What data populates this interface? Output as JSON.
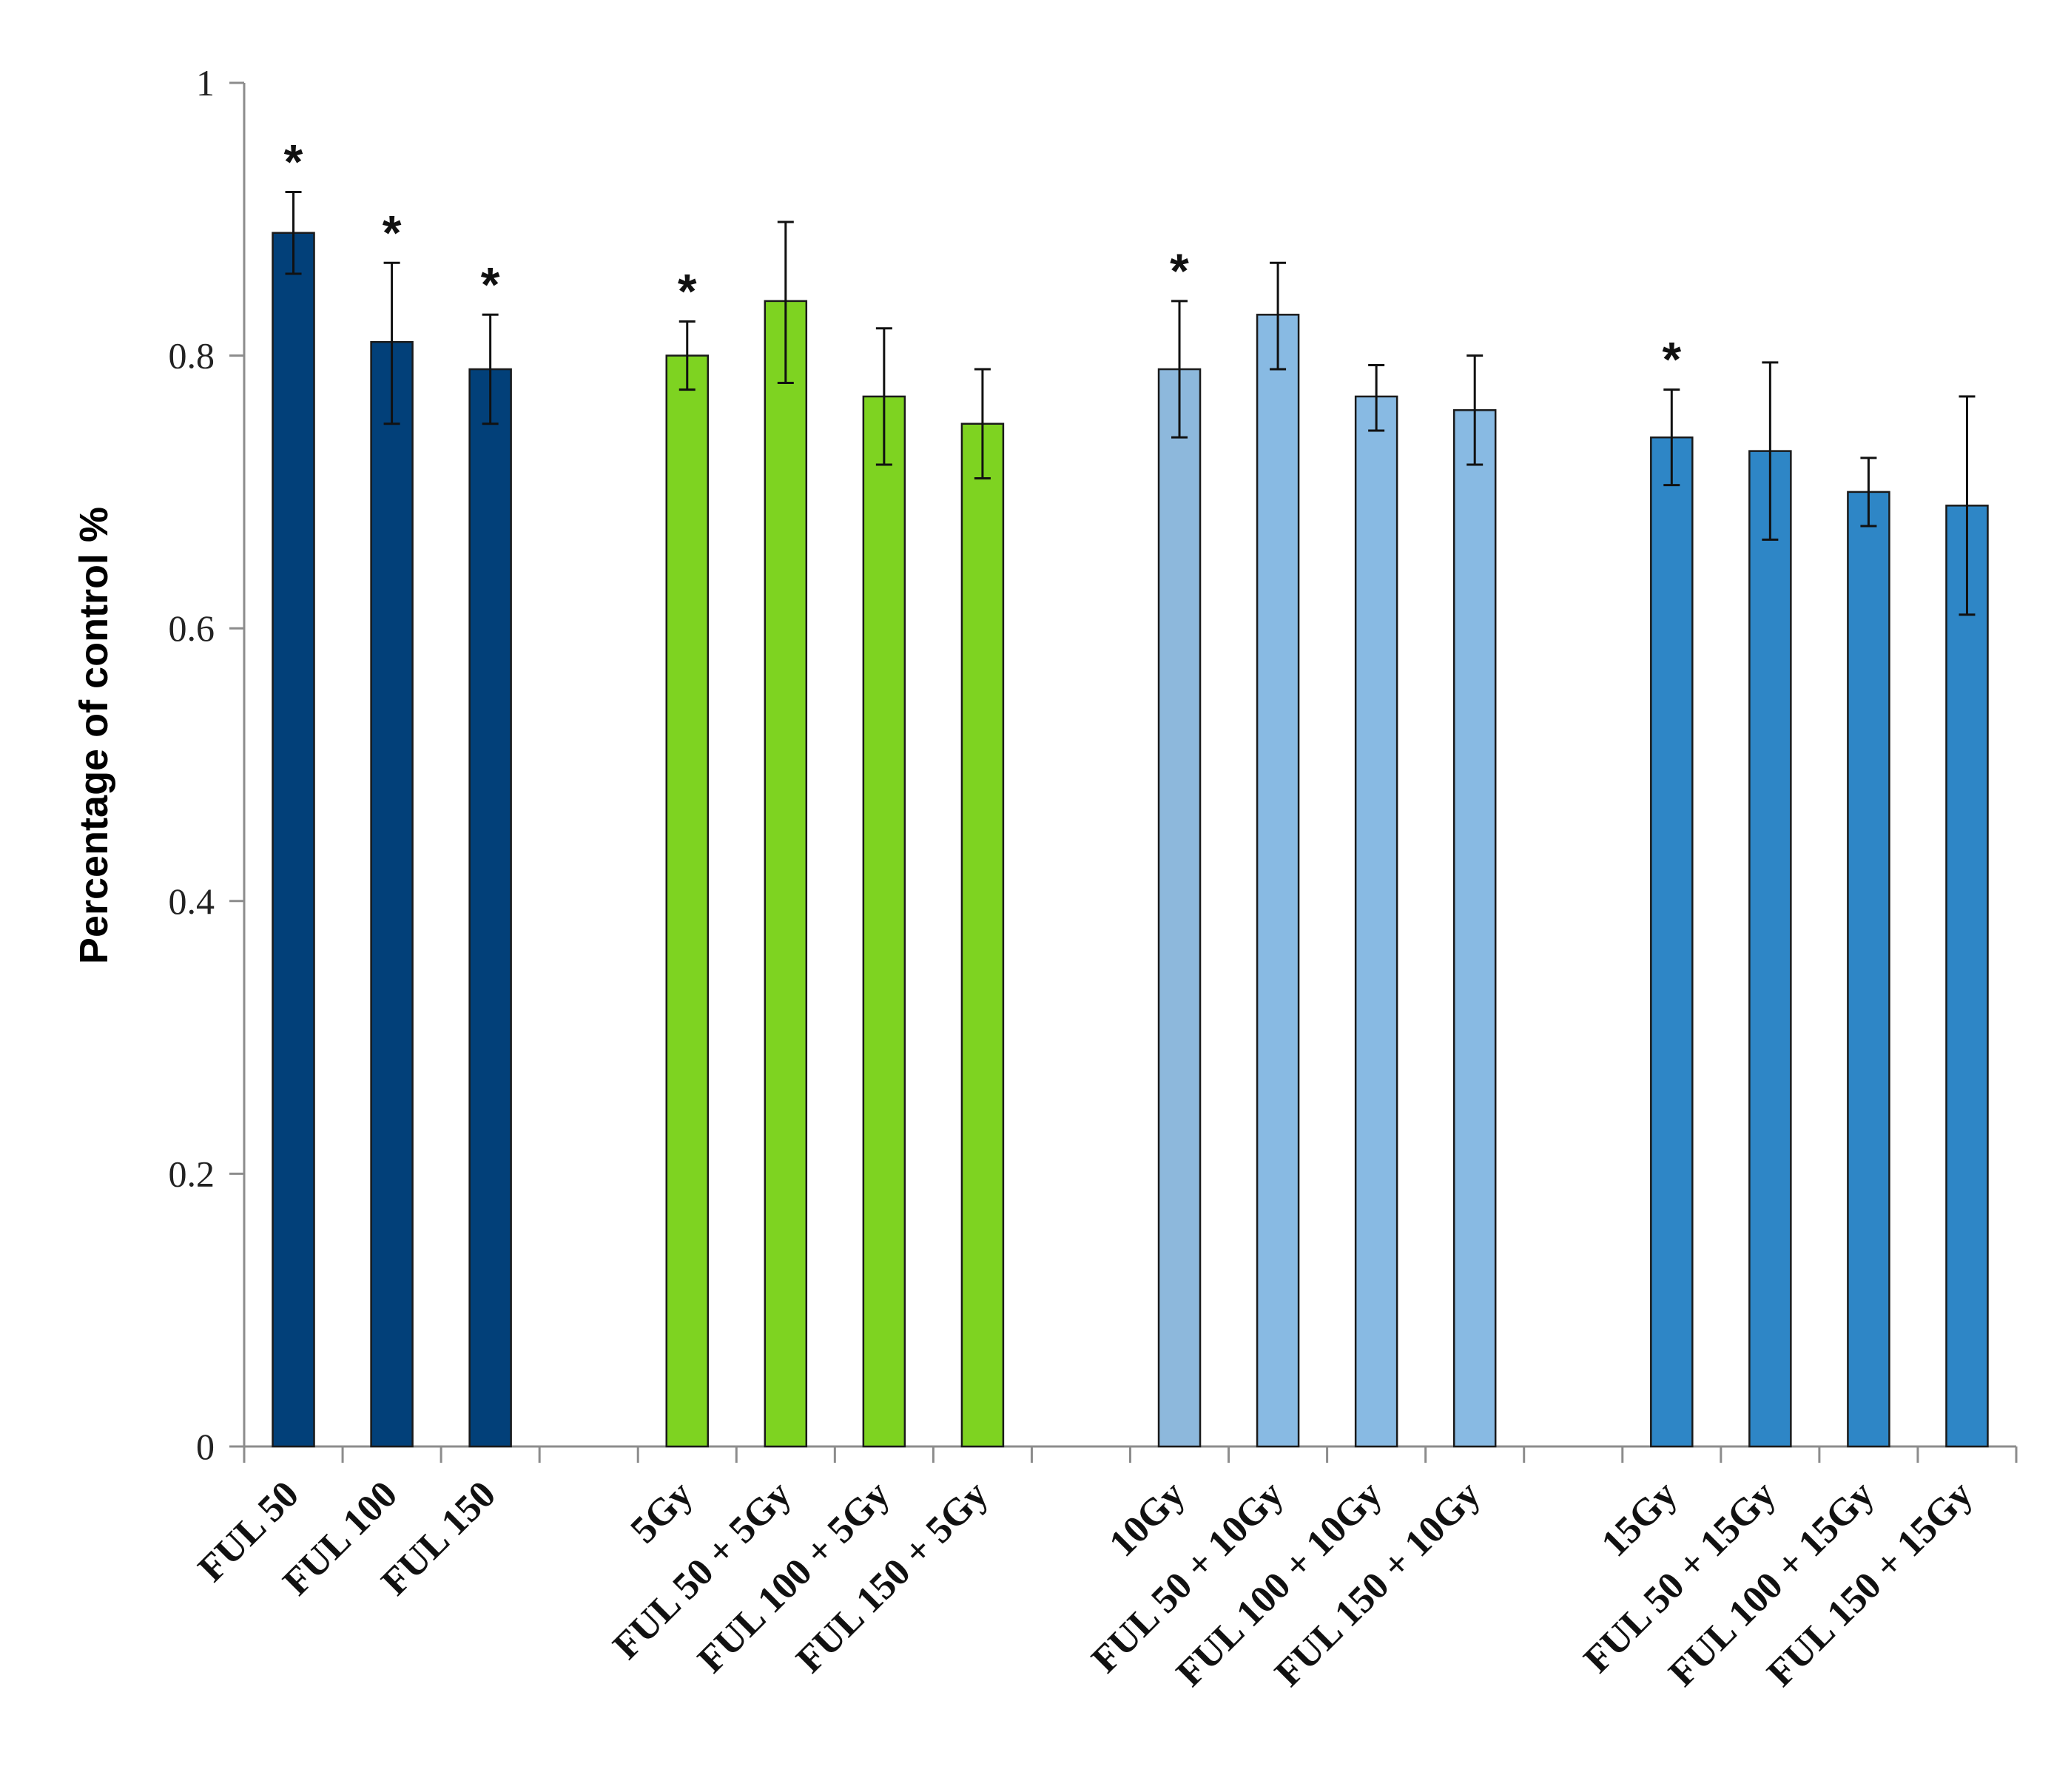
{
  "chart_data": {
    "type": "bar",
    "title": "",
    "xlabel": "",
    "ylabel": "Percentage of control %",
    "ylim": [
      0,
      1
    ],
    "yticks": [
      0,
      0.2,
      0.4,
      0.6,
      0.8,
      1
    ],
    "ytick_labels": [
      "0",
      "0.2",
      "0.4",
      "0.6",
      "0.8",
      "1"
    ],
    "grid": false,
    "legend": "none",
    "significance_marker": "*",
    "categories": [
      "FUL 50",
      "FUL 100",
      "FUL 150",
      "",
      "5Gy",
      "FUL 50 + 5Gy",
      "FUL 100 + 5Gy",
      "FUL 150 + 5Gy",
      "",
      "10Gy",
      "FUL 50 + 10Gy",
      "FUL 100 + 10Gy",
      "FUL 150 + 10Gy",
      "",
      "15Gy",
      "FUL 50 + 15Gy",
      "FUL 100 + 15Gy",
      "FUL 150 + 15Gy"
    ],
    "values": [
      0.89,
      0.81,
      0.79,
      null,
      0.8,
      0.84,
      0.77,
      0.75,
      null,
      0.79,
      0.83,
      0.77,
      0.76,
      null,
      0.74,
      0.73,
      0.7,
      0.69
    ],
    "error_low": [
      0.86,
      0.75,
      0.75,
      null,
      0.775,
      0.78,
      0.72,
      0.71,
      null,
      0.74,
      0.79,
      0.745,
      0.72,
      null,
      0.705,
      0.665,
      0.675,
      0.61
    ],
    "error_high": [
      0.92,
      0.868,
      0.83,
      null,
      0.825,
      0.898,
      0.82,
      0.79,
      null,
      0.84,
      0.868,
      0.793,
      0.8,
      null,
      0.775,
      0.795,
      0.725,
      0.77
    ],
    "significant": [
      true,
      true,
      true,
      false,
      true,
      false,
      false,
      false,
      false,
      true,
      false,
      false,
      false,
      false,
      true,
      false,
      false,
      false
    ],
    "colors": [
      "#024079",
      "#024079",
      "#024079",
      null,
      "#7ed321",
      "#7ed321",
      "#7ed321",
      "#7ed321",
      null,
      "#8db8dc",
      "#88bae3",
      "#88bae3",
      "#88bae3",
      null,
      "#2e86c6",
      "#2e86c6",
      "#2e86c6",
      "#2e86c6"
    ]
  }
}
